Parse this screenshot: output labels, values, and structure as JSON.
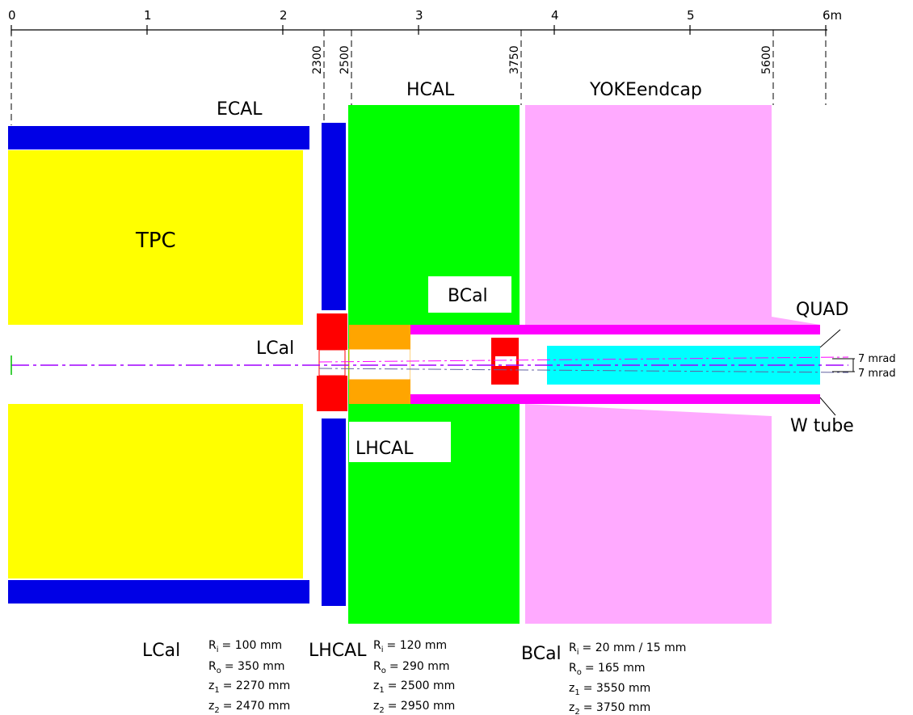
{
  "scale": {
    "ticks": [
      "0",
      "1",
      "2",
      "3",
      "4",
      "5",
      "6m"
    ],
    "boundaries": [
      "2300",
      "2500",
      "3750",
      "5600"
    ]
  },
  "labels": {
    "ecal": "ECAL",
    "hcal": "HCAL",
    "yoke": "YOKEendcap",
    "tpc": "TPC",
    "bcal": "BCal",
    "lcal": "LCal",
    "lhcal": "LHCAL",
    "quad": "QUAD",
    "wtube": "W tube",
    "mrad_up": "7 mrad",
    "mrad_down": "7 mrad"
  },
  "params": {
    "lcal": {
      "name": "LCal",
      "ri_label": "R",
      "ri_sub": "i",
      "ri_val": "= 100 mm",
      "ro_label": "R",
      "ro_sub": "o",
      "ro_val": "= 350 mm",
      "z1_label": "z",
      "z1_sub": "1",
      "z1_val": "= 2270 mm",
      "z2_label": "z",
      "z2_sub": "2",
      "z2_val": "= 2470 mm"
    },
    "lhcal": {
      "name": "LHCAL",
      "ri_label": "R",
      "ri_sub": "i",
      "ri_val": "= 120 mm",
      "ro_label": "R",
      "ro_sub": "o",
      "ro_val": "= 290 mm",
      "z1_label": "z",
      "z1_sub": "1",
      "z1_val": "= 2500 mm",
      "z2_label": "z",
      "z2_sub": "2",
      "z2_val": "= 2950 mm"
    },
    "bcal": {
      "name": "BCal",
      "ri_label": "R",
      "ri_sub": "i",
      "ri_val": "=  20 mm / 15 mm",
      "ro_label": "R",
      "ro_sub": "o",
      "ro_val": "= 165 mm",
      "z1_label": "z",
      "z1_sub": "1",
      "z1_val": "= 3550 mm",
      "z2_label": "z",
      "z2_sub": "2",
      "z2_val": "= 3750 mm"
    }
  },
  "colors": {
    "tpc": "#ffff00",
    "ecal": "#0000e6",
    "hcal": "#00ff00",
    "yoke": "#ffaaff",
    "lcal": "#ff0000",
    "lhcal": "#ffa500",
    "tube": "#ff00ff",
    "quad": "#00ffff"
  }
}
